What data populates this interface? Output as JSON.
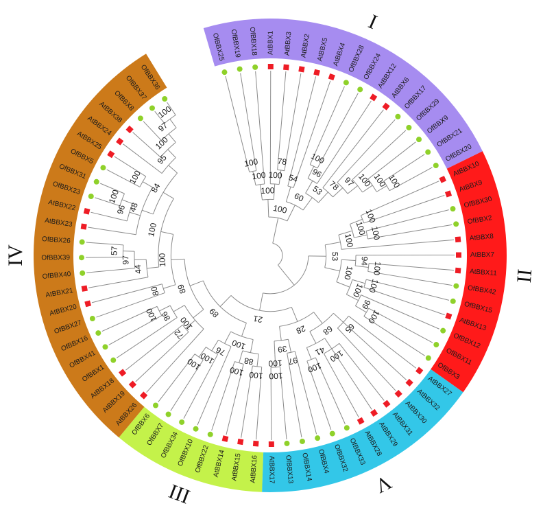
{
  "groups": [
    {
      "id": "I",
      "numeral": "I",
      "color": "#a68cf0"
    },
    {
      "id": "II",
      "numeral": "II",
      "color": "#ff1a1a"
    },
    {
      "id": "III",
      "numeral": "III",
      "color": "#c4f24a"
    },
    {
      "id": "IV",
      "numeral": "IV",
      "color": "#cc7a1a"
    },
    {
      "id": "V",
      "numeral": "V",
      "color": "#33c7e8"
    }
  ],
  "marker_colors": {
    "At": "#ee1c25",
    "Of": "#8fd12a"
  },
  "leaves": [
    "OfBBX25",
    "OfBBX19",
    "OfBBX18",
    "AtBBX1",
    "AtBBX3",
    "AtBBX2",
    "AtBBX5",
    "AtBBX4",
    "OfBBX28",
    "OfBBX24",
    "AtBBX12",
    "AtBBX6",
    "OfBBX17",
    "OfBBX29",
    "OfBBX9",
    "OfBBX21",
    "OfBBX20",
    "AtBBX10",
    "AtBBX9",
    "OfBBX30",
    "OfBBX2",
    "AtBBX8",
    "AtBBX7",
    "AtBBX11",
    "OfBBX42",
    "OfBBX15",
    "AtBBX13",
    "OfBBX12",
    "OfBBX11",
    "OfBBX3",
    "AtBBX27",
    "AtBBX32",
    "AtBBX30",
    "AtBBX31",
    "AtBBX29",
    "AtBBX28",
    "OfBBX33",
    "OfBBX32",
    "OfBBX4",
    "OfBBX14",
    "OfBBX13",
    "AtBBX17",
    "AtBBX16",
    "AtBBX15",
    "AtBBX14",
    "OfBBX22",
    "OfBBX10",
    "OfBBX34",
    "OfBBX7",
    "OfBBX6",
    "AtBBX26",
    "AtBBX19",
    "AtBBX18",
    "OfBBX1",
    "OfBBX41",
    "OfBBX16",
    "OfBBX27",
    "AtBBX20",
    "AtBBX21",
    "OfBBX40",
    "OfBBX39",
    "OfBBX26",
    "AtBBX23",
    "AtBBX22",
    "OfBBX23",
    "OfBBX31",
    "OfBBX5",
    "AtBBX25",
    "AtBBX24",
    "AtBBX38",
    "OfBBX8",
    "OfBBX37",
    "OfBBX36"
  ],
  "tree": {
    "c": [
      {
        "s": "100",
        "c": [
          {
            "s": "100",
            "c": [
              {
                "s": "100",
                "c": [
                  {
                    "s": "100",
                    "c": [
                      {
                        "l": 0
                      },
                      {
                        "l": 1
                      }
                    ]
                  },
                  {
                    "l": 2
                  }
                ]
              },
              {
                "s": "100",
                "c": [
                  {
                    "l": 3
                  },
                  {
                    "s": "78",
                    "c": [
                      {
                        "l": 4
                      },
                      {
                        "l": 5
                      }
                    ]
                  }
                ]
              }
            ]
          },
          {
            "s": "60",
            "c": [
              {
                "s": "54",
                "c": [
                  {
                    "l": 6
                  },
                  {
                    "l": 7
                  }
                ]
              },
              {
                "s": "53",
                "c": [
                  {
                    "s": "96",
                    "c": [
                      {
                        "s": "100",
                        "c": [
                          {
                            "l": 8
                          },
                          {
                            "l": 9
                          }
                        ]
                      },
                      {
                        "l": 10
                      }
                    ]
                  },
                  {
                    "s": "78",
                    "c": [
                      {
                        "l": 11
                      },
                      {
                        "s": "97",
                        "c": [
                          {
                            "l": 12
                          },
                          {
                            "s": "100",
                            "c": [
                              {
                                "l": 13
                              },
                              {
                                "s": "100",
                                "c": [
                                  {
                                    "l": 14
                                  },
                                  {
                                    "s": "100",
                                    "c": [
                                      {
                                        "l": 15
                                      },
                                      {
                                        "l": 16
                                      }
                                    ]
                                  }
                                ]
                              }
                            ]
                          }
                        ]
                      }
                    ]
                  }
                ]
              }
            ]
          }
        ]
      },
      {
        "c": [
          {
            "s": "53",
            "c": [
              {
                "s": "100",
                "c": [
                  {
                    "s": "100",
                    "c": [
                      {
                        "s": "100",
                        "c": [
                          {
                            "l": 17
                          },
                          {
                            "l": 18
                          }
                        ]
                      },
                      {
                        "s": "100",
                        "c": [
                          {
                            "l": 19
                          },
                          {
                            "l": 20
                          }
                        ]
                      }
                    ]
                  },
                  {
                    "l": 21
                  }
                ]
              },
              {
                "s": "100",
                "c": [
                  {
                    "s": "94",
                    "c": [
                      {
                        "l": 22
                      },
                      {
                        "s": "100",
                        "c": [
                          {
                            "l": 23
                          },
                          {
                            "l": 24
                          }
                        ]
                      }
                    ]
                  },
                  {
                    "s": "100",
                    "c": [
                      {
                        "s": "100",
                        "c": [
                          {
                            "l": 25
                          },
                          {
                            "l": 26
                          }
                        ]
                      },
                      {
                        "s": "99",
                        "c": [
                          {
                            "l": 27
                          },
                          {
                            "s": "100",
                            "c": [
                              {
                                "l": 28
                              },
                              {
                                "l": 29
                              }
                            ]
                          }
                        ]
                      }
                    ]
                  }
                ]
              }
            ]
          },
          {
            "s": "21",
            "c": [
              {
                "s": "28",
                "c": [
                  {
                    "s": "68",
                    "c": [
                      {
                        "s": "65",
                        "c": [
                          {
                            "l": 30
                          },
                          {
                            "l": 31
                          },
                          {
                            "l": 32
                          }
                        ]
                      },
                      {
                        "s": "41",
                        "c": [
                          {
                            "s": "100",
                            "c": [
                              {
                                "l": 33
                              },
                              {
                                "l": 34
                              },
                              {
                                "l": 35
                              }
                            ]
                          },
                          {
                            "s": "100",
                            "c": [
                              {
                                "l": 36
                              },
                              {
                                "l": 37
                              }
                            ]
                          }
                        ]
                      }
                    ]
                  },
                  {
                    "s": "39",
                    "c": [
                      {
                        "s": "97",
                        "c": [
                          {
                            "l": 38
                          },
                          {
                            "l": 39
                          }
                        ]
                      },
                      {
                        "s": "100",
                        "c": [
                          {
                            "s": "100",
                            "c": [
                              {
                                "l": 40
                              },
                              {
                                "l": 41
                              }
                            ]
                          }
                        ]
                      }
                    ]
                  }
                ]
              },
              {
                "s": "89",
                "c": [
                  {
                    "s": "100",
                    "c": [
                      {
                        "s": "88",
                        "c": [
                          {
                            "s": "100",
                            "c": [
                              {
                                "l": 42
                              },
                              {
                                "l": 43
                              }
                            ]
                          },
                          {
                            "s": "100",
                            "c": [
                              {
                                "l": 44
                              },
                              {
                                "l": 45
                              }
                            ]
                          }
                        ]
                      },
                      {
                        "s": "76",
                        "c": [
                          {
                            "l": 46
                          },
                          {
                            "s": "100",
                            "c": [
                              {
                                "l": 47
                              },
                              {
                                "s": "100",
                                "c": [
                                  {
                                    "l": 48
                                  },
                                  {
                                    "l": 49
                                  }
                                ]
                              }
                            ]
                          }
                        ]
                      }
                    ]
                  },
                  {
                    "s": "89",
                    "c": [
                      {
                        "s": "100",
                        "c": [
                          {
                            "l": 50
                          },
                          {
                            "s": "72",
                            "c": [
                              {
                                "l": 51
                              },
                              {
                                "l": 52
                              }
                            ]
                          },
                          {
                            "s": "86",
                            "c": [
                              {
                                "l": 53
                              },
                              {
                                "s": "100",
                                "c": [
                                  {
                                    "l": 54
                                  },
                                  {
                                    "l": 55
                                  }
                                ]
                              }
                            ]
                          }
                        ]
                      },
                      {
                        "s": "100",
                        "c": [
                          {
                            "s": "80",
                            "c": [
                              {
                                "l": 56
                              },
                              {
                                "l": 57
                              }
                            ]
                          },
                          {
                            "s": "100",
                            "c": [
                              {
                                "s": "44",
                                "c": [
                                  {
                                    "l": 58
                                  },
                                  {
                                    "s": "97",
                                    "c": [
                                      {
                                        "l": 59
                                      },
                                      {
                                        "s": "57",
                                        "c": [
                                          {
                                            "l": 60
                                          },
                                          {
                                            "l": 61
                                          }
                                        ]
                                      }
                                    ]
                                  }
                                ]
                              },
                              {
                                "s": "84",
                                "c": [
                                  {
                                    "s": "48",
                                    "c": [
                                      {
                                        "l": 62
                                      },
                                      {
                                        "s": "96",
                                        "c": [
                                          {
                                            "l": 63
                                          },
                                          {
                                            "s": "100",
                                            "c": [
                                              {
                                                "l": 64
                                              },
                                              {
                                                "l": 65
                                              }
                                            ]
                                          }
                                        ]
                                      },
                                      {
                                        "s": "100",
                                        "c": [
                                          {
                                            "l": 66
                                          },
                                          {
                                            "l": 67
                                          }
                                        ]
                                      }
                                    ]
                                  },
                                  {
                                    "s": "95",
                                    "c": [
                                      {
                                        "l": 68
                                      },
                                      {
                                        "s": "100",
                                        "c": [
                                          {
                                            "l": 69
                                          },
                                          {
                                            "s": "97",
                                            "c": [
                                              {
                                                "l": 70
                                              },
                                              {
                                                "s": "100",
                                                "c": [
                                                  {
                                                    "l": 71
                                                  },
                                                  {
                                                    "l": 72
                                                  }
                                                ]
                                              }
                                            ]
                                          }
                                        ]
                                      }
                                    ]
                                  }
                                ]
                              }
                            ]
                          }
                        ]
                      }
                    ]
                  }
                ]
              }
            ]
          }
        ]
      }
    ]
  }
}
